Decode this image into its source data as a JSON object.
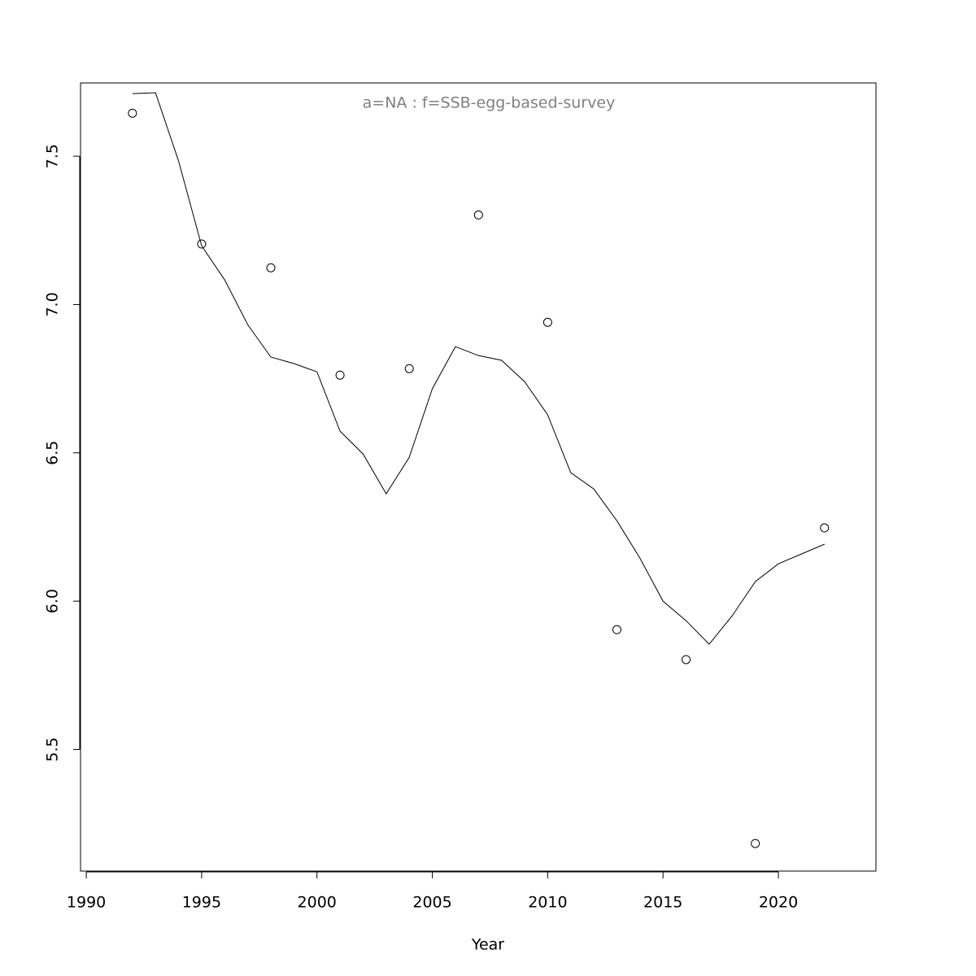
{
  "chart_data": {
    "type": "line",
    "title": "a=NA  :  f=SSB-egg-based-survey",
    "x_label": "Year",
    "xlim": [
      1989.75,
      2024.23
    ],
    "ylim": [
      5.09,
      7.747
    ],
    "xticks": [
      1990,
      1995,
      2000,
      2005,
      2010,
      2015,
      2020
    ],
    "yticks": [
      5.5,
      {
        "value": 6,
        "label": "6.0"
      },
      6.5,
      {
        "value": 7,
        "label": "7.0"
      },
      7.5
    ],
    "color": "#000000",
    "title_color": "#808080",
    "line": {
      "x": [
        1992,
        1993,
        1994,
        1995,
        1996,
        1997,
        1998,
        1999,
        2000,
        2001,
        2002,
        2003,
        2004,
        2005,
        2006,
        2007,
        2008,
        2009,
        2010,
        2011,
        2012,
        2013,
        2014,
        2015,
        2016,
        2017,
        2018,
        2019,
        2020,
        2021,
        2022
      ],
      "values": [
        7.711,
        7.714,
        7.484,
        7.198,
        7.083,
        6.932,
        6.823,
        6.801,
        6.773,
        6.573,
        6.496,
        6.362,
        6.485,
        6.716,
        6.858,
        6.828,
        6.812,
        6.74,
        6.628,
        6.433,
        6.378,
        6.271,
        6.145,
        6.0,
        5.934,
        5.855,
        5.951,
        6.066,
        6.126,
        6.159,
        6.192
      ]
    },
    "points": {
      "x": [
        1992,
        1995,
        1998,
        2001,
        2004,
        2007,
        2010,
        2013,
        2016,
        2019,
        2022
      ],
      "values": [
        7.645,
        7.204,
        7.124,
        6.762,
        6.784,
        7.302,
        6.94,
        5.904,
        5.803,
        5.183,
        6.247
      ]
    }
  }
}
